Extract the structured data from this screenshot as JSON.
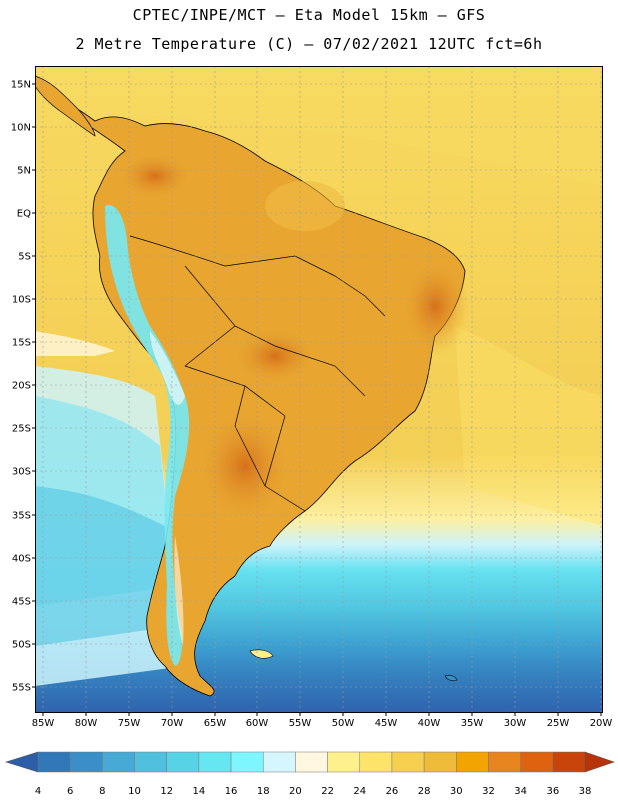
{
  "header": {
    "line1": "CPTEC/INPE/MCT –  Eta Model 15km – GFS",
    "line2": "2 Metre Temperature (C) – 07/02/2021 12UTC fct=6h"
  },
  "map": {
    "lat_labels": [
      "15N",
      "10N",
      "5N",
      "EQ",
      "5S",
      "10S",
      "15S",
      "20S",
      "25S",
      "30S",
      "35S",
      "40S",
      "45S",
      "50S",
      "55S"
    ],
    "lon_labels": [
      "85W",
      "80W",
      "75W",
      "70W",
      "65W",
      "60W",
      "55W",
      "50W",
      "45W",
      "40W",
      "35W",
      "30W",
      "25W",
      "20W"
    ],
    "colors": {
      "ocean_deep": "#2f62ad",
      "ocean_mid": "#3a8fc9",
      "ocean_light": "#55cde6",
      "ocean_pale": "#cdf3fb",
      "warm_sea": "#f4d35c",
      "land_warm": "#e8a630",
      "land_hot": "#d6701a",
      "andes_cold": "#74e9f5",
      "border": "#000000",
      "grid": "#9b9b9b"
    }
  },
  "legend": {
    "labels": [
      "4",
      "6",
      "8",
      "10",
      "12",
      "14",
      "16",
      "18",
      "20",
      "22",
      "24",
      "26",
      "28",
      "30",
      "32",
      "34",
      "36",
      "38"
    ],
    "colors": [
      "#2c5da7",
      "#3078b8",
      "#3a8fc9",
      "#46a9d6",
      "#51c0de",
      "#58d3e6",
      "#66e6f0",
      "#7ef6ff",
      "#d6f6ff",
      "#fff7e0",
      "#fff08e",
      "#fde36a",
      "#f6cf4e",
      "#efbc3a",
      "#f2a500",
      "#e8841e",
      "#de6210",
      "#c9440a",
      "#b83308"
    ]
  }
}
